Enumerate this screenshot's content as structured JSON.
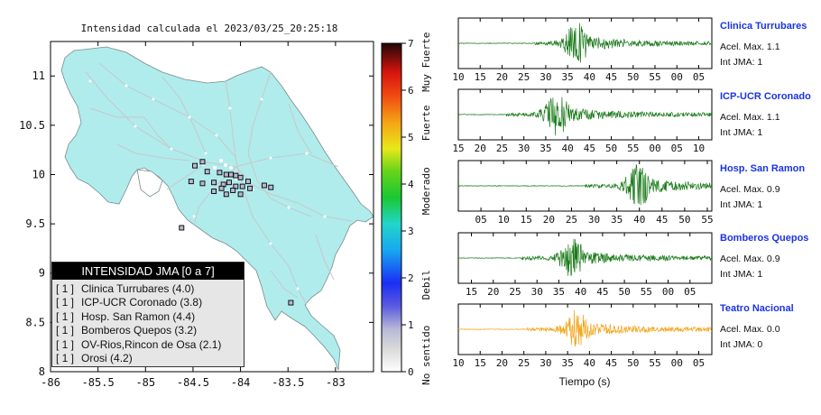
{
  "map": {
    "title": "Intensidad calculada el 2023/03/25_20:25:18",
    "x_ticks": [
      "-86",
      "-85.5",
      "-85",
      "-84.5",
      "-84",
      "-83.5",
      "-83"
    ],
    "y_ticks": [
      "11",
      "10.5",
      "10",
      "9.5",
      "9",
      "8.5",
      "8"
    ],
    "x_range": [
      -86,
      -82.6
    ],
    "y_range": [
      8,
      11.35
    ],
    "land_color": "#b0ecec",
    "stations": [
      {
        "lon": -84.48,
        "lat": 10.09
      },
      {
        "lon": -84.4,
        "lat": 10.13
      },
      {
        "lon": -84.35,
        "lat": 10.03
      },
      {
        "lon": -84.22,
        "lat": 10.02
      },
      {
        "lon": -84.1,
        "lat": 10.0
      },
      {
        "lon": -84.05,
        "lat": 9.99
      },
      {
        "lon": -84.0,
        "lat": 9.97
      },
      {
        "lon": -83.92,
        "lat": 9.93
      },
      {
        "lon": -84.52,
        "lat": 9.93
      },
      {
        "lon": -84.4,
        "lat": 9.91
      },
      {
        "lon": -84.28,
        "lat": 9.92
      },
      {
        "lon": -84.18,
        "lat": 9.9
      },
      {
        "lon": -84.12,
        "lat": 9.92
      },
      {
        "lon": -84.05,
        "lat": 9.88
      },
      {
        "lon": -83.98,
        "lat": 9.88
      },
      {
        "lon": -83.9,
        "lat": 9.86
      },
      {
        "lon": -84.2,
        "lat": 9.86
      },
      {
        "lon": -84.08,
        "lat": 9.84
      },
      {
        "lon": -84.28,
        "lat": 9.83
      },
      {
        "lon": -83.75,
        "lat": 9.89
      },
      {
        "lon": -83.68,
        "lat": 9.87
      },
      {
        "lon": -84.15,
        "lat": 9.8
      },
      {
        "lon": -84.0,
        "lat": 9.8
      },
      {
        "lon": -84.15,
        "lat": 10.0
      },
      {
        "lon": -84.62,
        "lat": 9.46
      },
      {
        "lon": -83.47,
        "lat": 8.7
      }
    ]
  },
  "legend": {
    "title": "INTENSIDAD JMA [0 a 7]",
    "rows": [
      {
        "count": "[ 1 ]",
        "name": "Clinica Turrubares (4.0)"
      },
      {
        "count": "[ 1 ]",
        "name": "ICP-UCR Coronado (3.8)"
      },
      {
        "count": "[ 1 ]",
        "name": "Hosp. San Ramon (4.4)"
      },
      {
        "count": "[ 1 ]",
        "name": "Bomberos Quepos (3.2)"
      },
      {
        "count": "[ 1 ]",
        "name": "OV-Rios,Rincon de Osa (2.1)"
      },
      {
        "count": "[ 1 ]",
        "name": "Orosi (4.2)"
      }
    ]
  },
  "colorbar": {
    "ticks": [
      "0",
      "1",
      "2",
      "3",
      "4",
      "5",
      "6",
      "7"
    ],
    "labels": [
      "No sentido",
      "Debil",
      "Moderado",
      "Fuerte",
      "Muy Fuerte"
    ],
    "range": [
      0,
      7
    ]
  },
  "waveforms": {
    "xlabel": "Tiempo (s)",
    "stations": [
      {
        "name": "Clinica Turrubares",
        "acel": "Acel. Max. 1.1",
        "jma": "Int JMA: 1",
        "color": "#1a7a1a",
        "ticks": [
          "10",
          "15",
          "20",
          "25",
          "30",
          "35",
          "40",
          "45",
          "50",
          "55",
          "00",
          "05"
        ],
        "start": 10,
        "end": 68,
        "onset": 0.3,
        "peak": 0.47,
        "amp": 0.85
      },
      {
        "name": "ICP-UCR Coronado",
        "acel": "Acel. Max. 1.1",
        "jma": "Int JMA: 1",
        "color": "#1a7a1a",
        "ticks": [
          "15",
          "20",
          "25",
          "30",
          "35",
          "40",
          "45",
          "50",
          "55",
          "00",
          "05",
          "10"
        ],
        "start": 15,
        "end": 73,
        "onset": 0.19,
        "peak": 0.39,
        "amp": 0.85
      },
      {
        "name": "Hosp. San Ramon",
        "acel": "Acel. Max. 0.9",
        "jma": "Int JMA: 1",
        "color": "#1a7a1a",
        "ticks": [
          "05",
          "10",
          "15",
          "20",
          "25",
          "30",
          "35",
          "40",
          "45",
          "50",
          "55"
        ],
        "start": 60,
        "end": 116,
        "onset": 0.5,
        "peak": 0.71,
        "amp": 0.95
      },
      {
        "name": "Bomberos Quepos",
        "acel": "Acel. Max. 0.9",
        "jma": "Int JMA: 1",
        "color": "#1a7a1a",
        "ticks": [
          "15",
          "20",
          "25",
          "30",
          "35",
          "40",
          "45",
          "50",
          "55",
          "00",
          "05"
        ],
        "start": 12,
        "end": 70,
        "onset": 0.25,
        "peak": 0.45,
        "amp": 0.8
      },
      {
        "name": "Teatro Nacional",
        "acel": "Acel. Max. 0.0",
        "jma": "Int JMA: 0",
        "color": "#f2a418",
        "ticks": [
          "10",
          "15",
          "20",
          "25",
          "30",
          "35",
          "40",
          "45",
          "50",
          "55",
          "00",
          "05"
        ],
        "start": 10,
        "end": 68,
        "onset": 0.27,
        "peak": 0.47,
        "amp": 0.8
      }
    ]
  }
}
